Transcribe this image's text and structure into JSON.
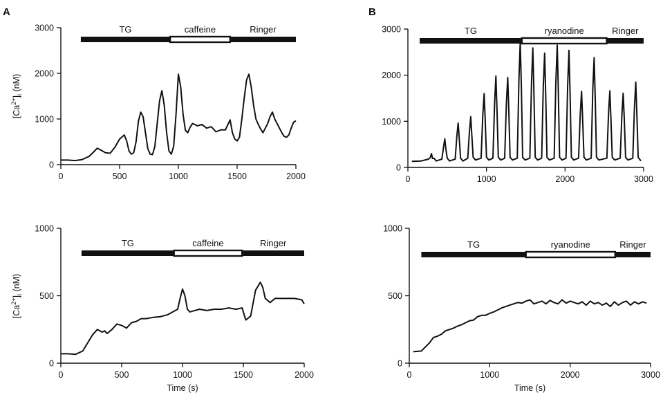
{
  "figure": {
    "panel_a_letter": "A",
    "panel_b_letter": "B"
  },
  "chart_data": [
    {
      "panel": "A-top",
      "type": "line",
      "xlabel": "",
      "ylabel": "[Ca2+]i (nM)",
      "xlim": [
        0,
        2000
      ],
      "ylim": [
        0,
        3000
      ],
      "xticks": [
        0,
        500,
        1000,
        1500,
        2000
      ],
      "yticks": [
        0,
        1000,
        2000,
        3000
      ],
      "treatment_bars": [
        {
          "label": "TG",
          "start": 170,
          "end": 930,
          "fill": "black"
        },
        {
          "label": "caffeine",
          "start": 930,
          "end": 1440,
          "fill": "white"
        },
        {
          "label": "Ringer",
          "start": 1440,
          "end": 2000,
          "fill": "black"
        }
      ],
      "series": [
        {
          "x": [
            0,
            60,
            120,
            180,
            240,
            280,
            310,
            340,
            380,
            420,
            460,
            500,
            540,
            560,
            580,
            600,
            620,
            640,
            660,
            680,
            700,
            720,
            740,
            760,
            780,
            800,
            820,
            840,
            860,
            880,
            900,
            920,
            940,
            960,
            980,
            1000,
            1020,
            1040,
            1060,
            1080,
            1100,
            1120,
            1140,
            1160,
            1200,
            1240,
            1280,
            1320,
            1360,
            1400,
            1440,
            1460,
            1480,
            1500,
            1520,
            1540,
            1560,
            1580,
            1600,
            1620,
            1640,
            1660,
            1680,
            1700,
            1720,
            1740,
            1760,
            1780,
            1800,
            1820,
            1840,
            1860,
            1880,
            1900,
            1920,
            1940,
            1960,
            1980,
            2000
          ],
          "values": [
            100,
            100,
            90,
            110,
            180,
            280,
            360,
            320,
            260,
            250,
            380,
            560,
            650,
            520,
            300,
            230,
            260,
            500,
            950,
            1150,
            1050,
            700,
            350,
            230,
            220,
            400,
            900,
            1400,
            1620,
            1300,
            700,
            300,
            230,
            400,
            1100,
            1980,
            1700,
            1100,
            750,
            700,
            820,
            900,
            880,
            850,
            880,
            800,
            830,
            720,
            760,
            760,
            980,
            700,
            560,
            520,
            600,
            1000,
            1450,
            1850,
            1980,
            1700,
            1300,
            1000,
            880,
            780,
            700,
            800,
            900,
            1050,
            1150,
            1000,
            900,
            800,
            700,
            620,
            600,
            650,
            800,
            930,
            960
          ]
        }
      ]
    },
    {
      "panel": "B-top",
      "type": "line",
      "xlabel": "",
      "ylabel": "",
      "xlim": [
        0,
        3000
      ],
      "ylim": [
        0,
        3000
      ],
      "xticks": [
        0,
        1000,
        2000,
        3000
      ],
      "yticks": [
        0,
        1000,
        2000,
        3000
      ],
      "treatment_bars": [
        {
          "label": "TG",
          "start": 150,
          "end": 1450,
          "fill": "black"
        },
        {
          "label": "ryanodine",
          "start": 1450,
          "end": 2530,
          "fill": "white"
        },
        {
          "label": "Ringer",
          "start": 2530,
          "end": 3000,
          "fill": "black"
        }
      ],
      "series": [
        {
          "peaks_x": [
            300,
            470,
            640,
            800,
            970,
            1120,
            1270,
            1430,
            1590,
            1740,
            1900,
            2050,
            2210,
            2370,
            2570,
            2740,
            2900
          ],
          "peaks_y": [
            300,
            620,
            960,
            1100,
            1600,
            1980,
            1950,
            2720,
            2590,
            2480,
            2650,
            2540,
            1650,
            2380,
            1660,
            1610,
            1850
          ],
          "baseline": 130,
          "x_start": 50,
          "x_end": 2960
        }
      ]
    },
    {
      "panel": "A-bottom",
      "type": "line",
      "xlabel": "Time (s)",
      "ylabel": "[Ca2+]i (nM)",
      "xlim": [
        0,
        2000
      ],
      "ylim": [
        0,
        1000
      ],
      "xticks": [
        0,
        500,
        1000,
        1500,
        2000
      ],
      "yticks": [
        0,
        500,
        1000
      ],
      "treatment_bars": [
        {
          "label": "TG",
          "start": 170,
          "end": 930,
          "fill": "black"
        },
        {
          "label": "caffeine",
          "start": 930,
          "end": 1490,
          "fill": "white"
        },
        {
          "label": "Ringer",
          "start": 1490,
          "end": 2000,
          "fill": "black"
        }
      ],
      "series": [
        {
          "x": [
            0,
            60,
            120,
            180,
            220,
            260,
            300,
            340,
            360,
            380,
            420,
            460,
            500,
            540,
            580,
            620,
            660,
            700,
            760,
            820,
            880,
            920,
            960,
            980,
            1000,
            1020,
            1040,
            1060,
            1100,
            1140,
            1200,
            1260,
            1320,
            1380,
            1440,
            1490,
            1520,
            1560,
            1600,
            1640,
            1660,
            1680,
            1720,
            1760,
            1800,
            1860,
            1920,
            1980,
            2000
          ],
          "values": [
            70,
            70,
            65,
            90,
            150,
            210,
            250,
            230,
            240,
            220,
            250,
            290,
            280,
            260,
            300,
            310,
            330,
            330,
            340,
            345,
            360,
            380,
            400,
            480,
            550,
            500,
            400,
            380,
            390,
            400,
            390,
            400,
            400,
            410,
            400,
            410,
            320,
            350,
            540,
            600,
            560,
            480,
            450,
            480,
            480,
            480,
            480,
            470,
            440
          ]
        }
      ]
    },
    {
      "panel": "B-bottom",
      "type": "line",
      "xlabel": "Time (s)",
      "ylabel": "",
      "xlim": [
        0,
        3000
      ],
      "ylim": [
        0,
        1000
      ],
      "xticks": [
        0,
        1000,
        2000,
        3000
      ],
      "yticks": [
        0,
        500,
        1000
      ],
      "treatment_bars": [
        {
          "label": "TG",
          "start": 150,
          "end": 1450,
          "fill": "black"
        },
        {
          "label": "ryanodine",
          "start": 1450,
          "end": 2560,
          "fill": "white"
        },
        {
          "label": "Ringer",
          "start": 2560,
          "end": 3000,
          "fill": "black"
        }
      ],
      "series": [
        {
          "x": [
            50,
            150,
            200,
            250,
            300,
            350,
            400,
            450,
            500,
            550,
            600,
            650,
            700,
            750,
            800,
            850,
            900,
            950,
            1000,
            1050,
            1100,
            1150,
            1200,
            1250,
            1300,
            1350,
            1400,
            1450,
            1500,
            1550,
            1600,
            1650,
            1700,
            1750,
            1800,
            1850,
            1900,
            1950,
            2000,
            2050,
            2100,
            2150,
            2200,
            2250,
            2300,
            2350,
            2400,
            2450,
            2500,
            2550,
            2600,
            2650,
            2700,
            2750,
            2800,
            2850,
            2900,
            2950
          ],
          "values": [
            85,
            90,
            120,
            150,
            190,
            200,
            215,
            240,
            250,
            260,
            275,
            285,
            300,
            315,
            320,
            345,
            355,
            355,
            370,
            380,
            395,
            410,
            420,
            430,
            440,
            450,
            445,
            460,
            470,
            440,
            450,
            460,
            440,
            465,
            450,
            440,
            470,
            445,
            460,
            450,
            440,
            455,
            430,
            460,
            440,
            450,
            430,
            445,
            420,
            455,
            430,
            450,
            460,
            430,
            455,
            440,
            455,
            445
          ]
        }
      ]
    }
  ]
}
